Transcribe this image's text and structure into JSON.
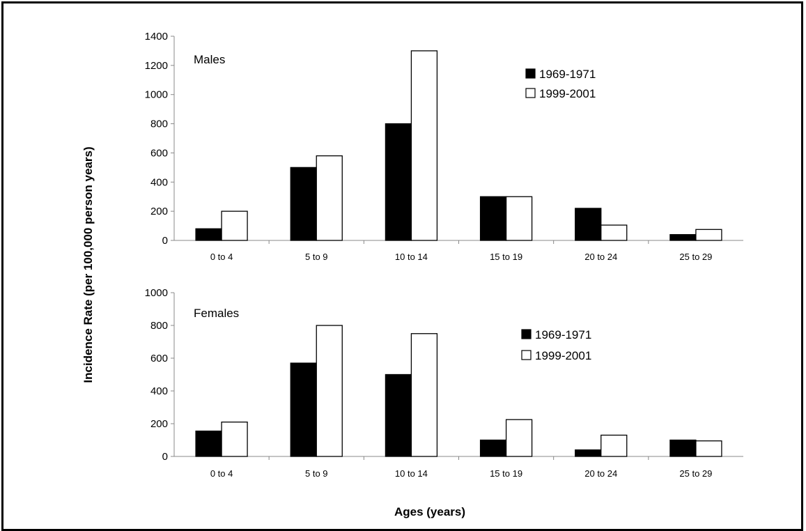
{
  "chart_data": {
    "type": "bar",
    "ylabel": "Incidence Rate (per 100,000 person years)",
    "xlabel": "Ages (years)",
    "legend_placement": "right of center",
    "grid": false,
    "colors": {
      "1969-1971": "#000000",
      "1999-2001": "#ffffff"
    },
    "panels": [
      {
        "label": "Males",
        "categories": [
          "0 to 4",
          "5 to 9",
          "10 to 14",
          "15 to 19",
          "20 to 24",
          "25 to 29"
        ],
        "ylim": [
          0,
          1400
        ],
        "yticks": [
          "0",
          "200",
          "400",
          "600",
          "800",
          "1000",
          "1200",
          "1400"
        ],
        "series": [
          {
            "name": "1969-1971",
            "values": [
              80,
              500,
              800,
              300,
              220,
              40
            ]
          },
          {
            "name": "1999-2001",
            "values": [
              200,
              580,
              1300,
              300,
              105,
              75
            ]
          }
        ]
      },
      {
        "label": "Females",
        "categories": [
          "0 to 4",
          "5 to 9",
          "10 to 14",
          "15 to 19",
          "20 to 24",
          "25 to 29"
        ],
        "ylim": [
          0,
          1000
        ],
        "yticks": [
          "0",
          "200",
          "400",
          "600",
          "800",
          "1000"
        ],
        "series": [
          {
            "name": "1969-1971",
            "values": [
              155,
              570,
              500,
              100,
              40,
              100
            ]
          },
          {
            "name": "1999-2001",
            "values": [
              210,
              800,
              750,
              225,
              130,
              95
            ]
          }
        ]
      }
    ]
  }
}
